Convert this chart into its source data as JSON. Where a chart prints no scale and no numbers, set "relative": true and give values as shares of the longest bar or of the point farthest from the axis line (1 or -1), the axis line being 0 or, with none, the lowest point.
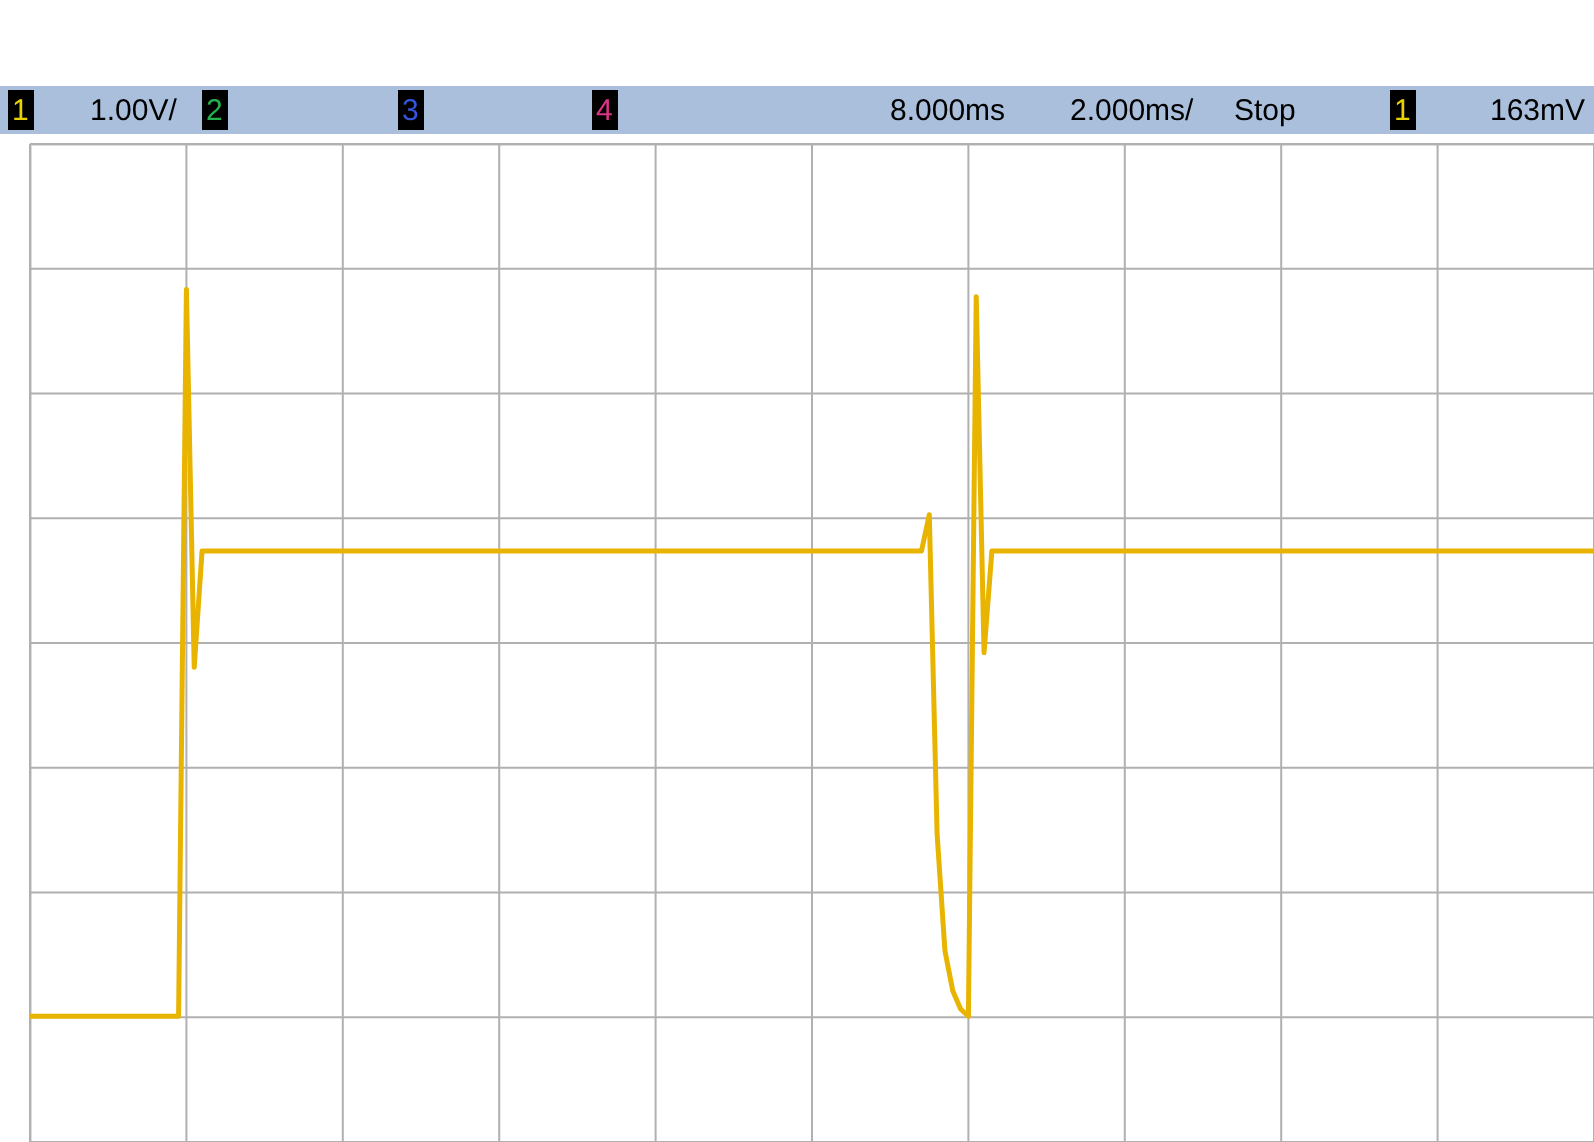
{
  "chart_data": {
    "type": "line",
    "relative": true,
    "categories": [
      null,
      null,
      null,
      null,
      null,
      null,
      null,
      null,
      null,
      null,
      null,
      null,
      null,
      null,
      null,
      null,
      null,
      null,
      null,
      null,
      null,
      null,
      null,
      null,
      null,
      null,
      null,
      null,
      null,
      null,
      null,
      null,
      null,
      null,
      null,
      null,
      null,
      null,
      null,
      null,
      null,
      null,
      null,
      null,
      null,
      null,
      null,
      null,
      null,
      null,
      null,
      null,
      null,
      null,
      null,
      null,
      null,
      null,
      null,
      null,
      null,
      null,
      null,
      null,
      null,
      null,
      null,
      null,
      null,
      null,
      null,
      null,
      null,
      null,
      null,
      null,
      null,
      null,
      null,
      null,
      null,
      null,
      null,
      null,
      null,
      null,
      null,
      null,
      null,
      null,
      null,
      null,
      null,
      null,
      null,
      null,
      null,
      null,
      null,
      null,
      null,
      null,
      null,
      null,
      null,
      null,
      null,
      null,
      null,
      null,
      null,
      null,
      null,
      null,
      null,
      null,
      null,
      null,
      null,
      null,
      null,
      null,
      null,
      null,
      null,
      null,
      null,
      null,
      null,
      null,
      null,
      null,
      null,
      null,
      null,
      null,
      null,
      null,
      null,
      null,
      null,
      null,
      null,
      null,
      null,
      null,
      null,
      null,
      null,
      null,
      null,
      null,
      null,
      null,
      null,
      null,
      null,
      null,
      null,
      null,
      null,
      null,
      null,
      null,
      null,
      null,
      null,
      null,
      null,
      null,
      null,
      null,
      null,
      null,
      null,
      null,
      null,
      null,
      null,
      null,
      null,
      null,
      null,
      null,
      null,
      null,
      null,
      null,
      null,
      null,
      null,
      null,
      null,
      null,
      null,
      null,
      null,
      null,
      null,
      null,
      null
    ],
    "series": [
      {
        "color": "#e8b400",
        "values": [
          0,
          0,
          0,
          0,
          0,
          0,
          0,
          0,
          0,
          0,
          0,
          0,
          0,
          0,
          0,
          0,
          0,
          0,
          0,
          0,
          1.0,
          0.48,
          0.64,
          0.64,
          0.64,
          0.64,
          0.64,
          0.64,
          0.64,
          0.64,
          0.64,
          0.64,
          0.64,
          0.64,
          0.64,
          0.64,
          0.64,
          0.64,
          0.64,
          0.64,
          0.64,
          0.64,
          0.64,
          0.64,
          0.64,
          0.64,
          0.64,
          0.64,
          0.64,
          0.64,
          0.64,
          0.64,
          0.64,
          0.64,
          0.64,
          0.64,
          0.64,
          0.64,
          0.64,
          0.64,
          0.64,
          0.64,
          0.64,
          0.64,
          0.64,
          0.64,
          0.64,
          0.64,
          0.64,
          0.64,
          0.64,
          0.64,
          0.64,
          0.64,
          0.64,
          0.64,
          0.64,
          0.64,
          0.64,
          0.64,
          0.64,
          0.64,
          0.64,
          0.64,
          0.64,
          0.64,
          0.64,
          0.64,
          0.64,
          0.64,
          0.64,
          0.64,
          0.64,
          0.64,
          0.64,
          0.64,
          0.64,
          0.64,
          0.64,
          0.64,
          0.64,
          0.64,
          0.64,
          0.64,
          0.64,
          0.64,
          0.64,
          0.64,
          0.64,
          0.64,
          0.64,
          0.64,
          0.64,
          0.64,
          0.64,
          0.69,
          0.25,
          0.09,
          0.035,
          0.01,
          0,
          0.99,
          0.5,
          0.64,
          0.64,
          0.64,
          0.64,
          0.64,
          0.64,
          0.64,
          0.64,
          0.64,
          0.64,
          0.64,
          0.64,
          0.64,
          0.64,
          0.64,
          0.64,
          0.64,
          0.64,
          0.64,
          0.64,
          0.64,
          0.64,
          0.64,
          0.64,
          0.64,
          0.64,
          0.64,
          0.64,
          0.64,
          0.64,
          0.64,
          0.64,
          0.64,
          0.64,
          0.64,
          0.64,
          0.64,
          0.64,
          0.64,
          0.64,
          0.64,
          0.64,
          0.64,
          0.64,
          0.64,
          0.64,
          0.64,
          0.64,
          0.64,
          0.64,
          0.64,
          0.64,
          0.64,
          0.64,
          0.64,
          0.64,
          0.64,
          0.64,
          0.64,
          0.64,
          0.64,
          0.64,
          0.64,
          0.64,
          0.64,
          0.64,
          0.64,
          0.64,
          0.64,
          0.64,
          0.64,
          0.64,
          0.64,
          0.64,
          0.64,
          0.64,
          0.64,
          0.64
        ]
      }
    ],
    "grid": true,
    "marker": "none",
    "line_style": "solid",
    "annotations": [
      "1",
      "1.00V/",
      "2",
      "3",
      "4",
      "8.000ms",
      "2.000ms/",
      "Stop",
      "1",
      "163mV"
    ]
  }
}
